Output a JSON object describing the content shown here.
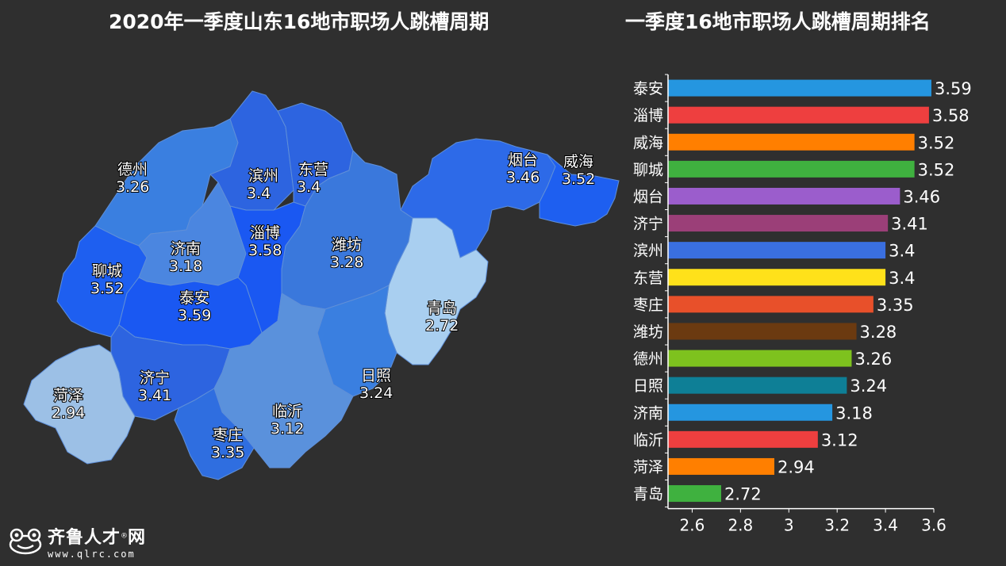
{
  "titles": {
    "map": "2020年一季度山东16地市职场人跳槽周期",
    "chart": "一季度16地市职场人跳槽周期排名"
  },
  "map_data": {
    "regions": [
      {
        "name": "德州",
        "value": "3.26",
        "color": "#3a7fe0"
      },
      {
        "name": "滨州",
        "value": "3.4",
        "color": "#2d64e0"
      },
      {
        "name": "东营",
        "value": "3.4",
        "color": "#2d64e0"
      },
      {
        "name": "烟台",
        "value": "3.46",
        "color": "#2d6ae8"
      },
      {
        "name": "威海",
        "value": "3.52",
        "color": "#1e5ff0"
      },
      {
        "name": "聊城",
        "value": "3.52",
        "color": "#1e5ff0"
      },
      {
        "name": "济南",
        "value": "3.18",
        "color": "#4b86e0"
      },
      {
        "name": "淄博",
        "value": "3.58",
        "color": "#1a58f2"
      },
      {
        "name": "潍坊",
        "value": "3.28",
        "color": "#3a78dc"
      },
      {
        "name": "泰安",
        "value": "3.59",
        "color": "#1a58f2"
      },
      {
        "name": "青岛",
        "value": "2.72",
        "color": "#a9cff0"
      },
      {
        "name": "济宁",
        "value": "3.41",
        "color": "#2d64e0"
      },
      {
        "name": "日照",
        "value": "3.24",
        "color": "#3a7fe0"
      },
      {
        "name": "菏泽",
        "value": "2.94",
        "color": "#9cc0e6"
      },
      {
        "name": "临沂",
        "value": "3.12",
        "color": "#5a91dc"
      },
      {
        "name": "枣庄",
        "value": "3.35",
        "color": "#2f6ee0"
      }
    ]
  },
  "chart_data": {
    "type": "bar",
    "orientation": "horizontal",
    "title": "一季度16地市职场人跳槽周期排名",
    "categories": [
      "泰安",
      "淄博",
      "威海",
      "聊城",
      "烟台",
      "济宁",
      "滨州",
      "东营",
      "枣庄",
      "潍坊",
      "德州",
      "日照",
      "济南",
      "临沂",
      "菏泽",
      "青岛"
    ],
    "values": [
      3.59,
      3.58,
      3.52,
      3.52,
      3.46,
      3.41,
      3.4,
      3.4,
      3.35,
      3.28,
      3.26,
      3.24,
      3.18,
      3.12,
      2.94,
      2.72
    ],
    "value_labels": [
      "3.59",
      "3.58",
      "3.52",
      "3.52",
      "3.46",
      "3.41",
      "3.4",
      "3.4",
      "3.35",
      "3.28",
      "3.26",
      "3.24",
      "3.18",
      "3.12",
      "2.94",
      "2.72"
    ],
    "bar_colors": [
      "#2596e0",
      "#ee3f3f",
      "#ff7f00",
      "#3fb13f",
      "#9b5dcc",
      "#9b3f78",
      "#3a6fe0",
      "#ffe11a",
      "#e8502a",
      "#6b3a10",
      "#7ec21e",
      "#0e7f96",
      "#2596e0",
      "#ee3f3f",
      "#ff7f00",
      "#3fb13f"
    ],
    "xlim": [
      2.5,
      3.6
    ],
    "xticks": [
      2.6,
      2.8,
      3,
      3.2,
      3.4,
      3.6
    ],
    "xtick_labels": [
      "2.6",
      "2.8",
      "3",
      "3.2",
      "3.4",
      "3.6"
    ],
    "grid": false,
    "legend": "none"
  },
  "logo": {
    "name": "齐鲁人才",
    "registered": "®",
    "suffix": "网",
    "url": "www.qlrc.com"
  }
}
